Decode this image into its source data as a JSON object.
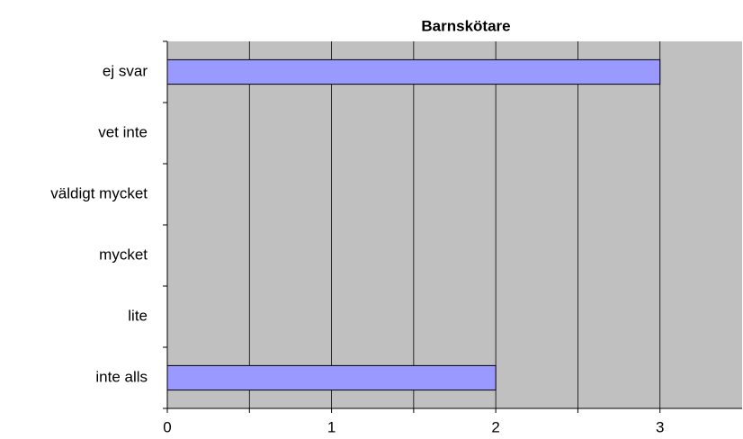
{
  "chart_data": {
    "type": "hbar",
    "title": "Barnskötare",
    "categories": [
      "ej svar",
      "vet inte",
      "väldigt mycket",
      "mycket",
      "lite",
      "inte alls"
    ],
    "values": [
      3,
      0,
      0,
      0,
      0,
      2
    ],
    "color": "#9999ff",
    "xlim": [
      0,
      3.5
    ],
    "xticks": [
      0,
      1,
      2,
      3
    ],
    "minor_xticks": [
      0.5,
      1.5,
      2.5
    ],
    "grid": true,
    "plot_background": "#c0c0c0"
  }
}
